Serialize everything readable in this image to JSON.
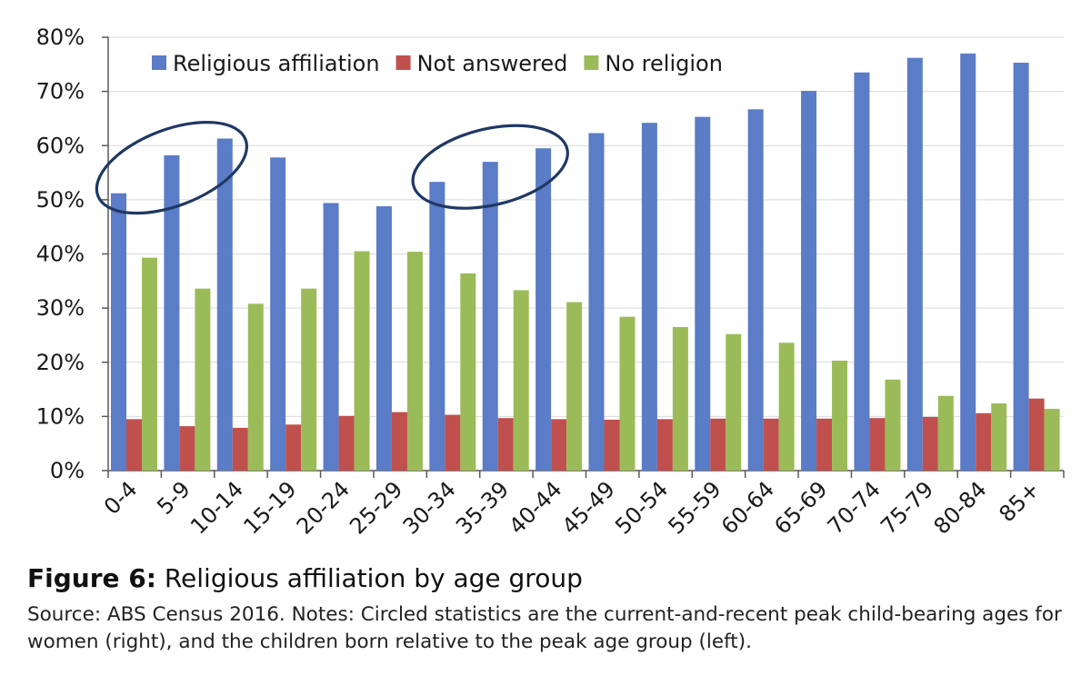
{
  "chart_data": {
    "type": "bar",
    "categories": [
      "0-4",
      "5-9",
      "10-14",
      "15-19",
      "20-24",
      "25-29",
      "30-34",
      "35-39",
      "40-44",
      "45-49",
      "50-54",
      "55-59",
      "60-64",
      "65-69",
      "70-74",
      "75-79",
      "80-84",
      "85+"
    ],
    "series": [
      {
        "name": "Religious affiliation",
        "color": "#5b7cc6",
        "values": [
          51.2,
          58.2,
          61.3,
          57.8,
          49.4,
          48.8,
          53.3,
          57.0,
          59.5,
          62.3,
          64.2,
          65.3,
          66.7,
          70.1,
          73.5,
          76.2,
          77.0,
          75.3
        ]
      },
      {
        "name": "Not answered",
        "color": "#c0504d",
        "values": [
          9.5,
          8.2,
          7.9,
          8.5,
          10.1,
          10.8,
          10.3,
          9.7,
          9.5,
          9.4,
          9.5,
          9.6,
          9.6,
          9.6,
          9.7,
          9.9,
          10.6,
          13.3
        ]
      },
      {
        "name": "No religion",
        "color": "#9bbb59",
        "values": [
          39.3,
          33.6,
          30.8,
          33.6,
          40.5,
          40.4,
          36.4,
          33.3,
          31.1,
          28.4,
          26.5,
          25.2,
          23.6,
          20.3,
          16.8,
          13.8,
          12.4,
          11.4
        ]
      }
    ],
    "ylim": [
      0,
      80
    ],
    "yticks": [
      "0%",
      "10%",
      "20%",
      "30%",
      "40%",
      "50%",
      "60%",
      "70%",
      "80%"
    ],
    "ytick_values": [
      0,
      10,
      20,
      30,
      40,
      50,
      60,
      70,
      80
    ],
    "grid": true,
    "legend_position": "top",
    "annotations": [
      {
        "type": "ellipse",
        "spans_categories": [
          "0-4",
          "10-14"
        ],
        "color": "#1f3864"
      },
      {
        "type": "ellipse",
        "spans_categories": [
          "30-34",
          "40-44"
        ],
        "color": "#1f3864"
      }
    ]
  },
  "caption": {
    "figure_label": "Figure 6:",
    "title": " Religious affiliation by age group",
    "source": "Source: ABS Census 2016. Notes: Circled statistics are the current-and-recent peak child-bearing ages for women (right), and the children born relative to the peak age group (left)."
  }
}
